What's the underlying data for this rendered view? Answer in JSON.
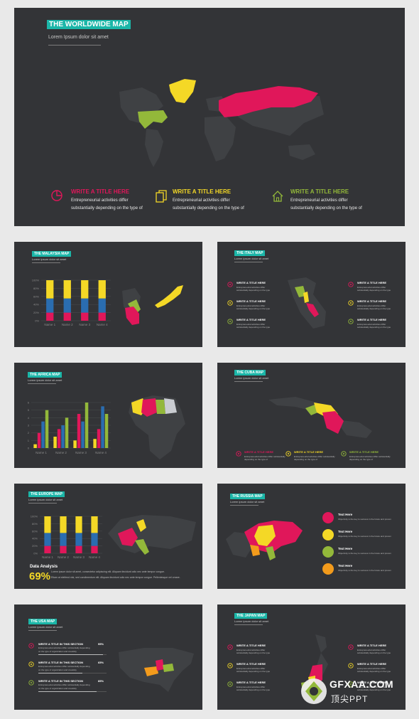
{
  "colors": {
    "teal": "#1bb6a8",
    "red": "#e0175a",
    "yellow": "#f4d826",
    "green": "#93b83a",
    "blue": "#2a6db0",
    "orange": "#f39b1c",
    "slide": "#333437"
  },
  "hero": {
    "title": "THE WORLDWIDE MAP",
    "subtitle": "Lorem Ipsum dolor sit amet",
    "features": [
      {
        "icon": "pie-chart-icon",
        "heading": "WRITE A TITLE  HERE",
        "line1": "Entrepreneurial  activities differ",
        "line2": "substantially depending  on the type of"
      },
      {
        "icon": "documents-icon",
        "heading": "WRITE A TITLE  HERE",
        "line1": "Entrepreneurial  activities differ",
        "line2": "substantially depending  on the type of"
      },
      {
        "icon": "house-icon",
        "heading": "WRITE A TITLE  HERE",
        "line1": "Entrepreneurial  activities differ",
        "line2": "substantially depending  on the type of"
      }
    ]
  },
  "malaysia": {
    "title": "THE MALAYSIA MAP",
    "subtitle": "Lorem ipsum dolor sit amet",
    "chart_data": {
      "type": "bar",
      "categories": [
        "Name 1",
        "Name 2",
        "Name 3",
        "Name 4"
      ],
      "yticks": [
        "100%",
        "80%",
        "60%",
        "40%",
        "20%",
        "0%"
      ],
      "series": [
        {
          "values": [
            20,
            20,
            20,
            20
          ]
        },
        {
          "values": [
            35,
            35,
            35,
            35
          ]
        },
        {
          "values": [
            45,
            45,
            45,
            45
          ]
        }
      ]
    }
  },
  "italy": {
    "title": "THE ITALY MAP",
    "subtitle": "Lorem ipsum dolor sit amet",
    "items": [
      {
        "heading": "WRITE A TITLE HERE",
        "text": "Entrepreneurial activities differ substantially depending on the type"
      },
      {
        "heading": "WRITE A TITLE HERE",
        "text": "Entrepreneurial activities differ substantially depending on the type"
      },
      {
        "heading": "WRITE A TITLE HERE",
        "text": "Entrepreneurial activities differ substantially depending on the type"
      },
      {
        "heading": "WRITE A TITLE HERE",
        "text": "Entrepreneurial activities differ substantially depending on the type"
      },
      {
        "heading": "WRITE A TITLE HERE",
        "text": "Entrepreneurial activities differ substantially depending on the type"
      },
      {
        "heading": "WRITE A TITLE HERE",
        "text": "Entrepreneurial activities differ substantially depending on the type"
      }
    ]
  },
  "africa": {
    "title": "THE AFRICA MAP",
    "subtitle": "Lorem ipsum dolor sit amet",
    "chart_data": {
      "type": "bar",
      "categories": [
        "Name 1",
        "Name 2",
        "Name 3",
        "Name 4"
      ],
      "yticks": [
        "6",
        "5",
        "4",
        "3",
        "2",
        "1",
        "0"
      ],
      "series": [
        {
          "values": [
            0.5,
            1.5,
            1.0,
            1.2
          ]
        },
        {
          "values": [
            2.0,
            2.5,
            4.5,
            2.5
          ]
        },
        {
          "values": [
            3.5,
            3.0,
            3.5,
            5.5
          ]
        },
        {
          "values": [
            5.0,
            4.0,
            6.0,
            4.5
          ]
        }
      ]
    }
  },
  "cuba": {
    "title": "THE CUBA MAP",
    "subtitle": "Lorem ipsum dolor sit amet",
    "items": [
      {
        "heading": "WRITE A TITLE HERE",
        "text": "Entrepreneurial activities differ substantially depending on the type of"
      },
      {
        "heading": "WRITE A TITLE HERE",
        "text": "Entrepreneurial activities differ substantially depending on the type of"
      },
      {
        "heading": "WRITE A TITLE HERE",
        "text": "Entrepreneurial activities differ substantially depending on the type of"
      }
    ]
  },
  "europe": {
    "title": "THE EUROPE MAP",
    "subtitle": "Lorem ipsum dolor sit amet",
    "chart_data": {
      "type": "bar",
      "categories": [
        "Name 1",
        "Name 2",
        "Name 3",
        "Name 4"
      ],
      "yticks": [
        "100%",
        "80%",
        "60%",
        "40%",
        "20%",
        "0%"
      ],
      "series": [
        {
          "values": [
            20,
            20,
            20,
            20
          ]
        },
        {
          "values": [
            35,
            35,
            35,
            35
          ]
        },
        {
          "values": [
            45,
            45,
            45,
            45
          ]
        }
      ]
    },
    "analysis_label": "Data Analysis",
    "analysis_value": "69%",
    "analysis_text1": "Lorem ipsum dolor sit amet, consectetur adipiscing elit. Aliquam tincidunt odio nec ante tempor congue.",
    "analysis_text2": "Etiam at eleifend nisi, sed condimentum elit. Aliquam tincidunt odio nec ante tempor congue. Pellentesque vel ornare."
  },
  "russia": {
    "title": "THE RUSSIA MAP",
    "subtitle": "Lorem ipsum dolor sit amet",
    "items": [
      {
        "heading": "Text Here",
        "text": "Objectivity is the key to success in the future and proven"
      },
      {
        "heading": "Text Here",
        "text": "Objectivity is the key to success in the future and proven"
      },
      {
        "heading": "Text Here",
        "text": "Objectivity is the key to success in the future and proven"
      },
      {
        "heading": "Text Here",
        "text": "Objectivity is the key to success in the future and proven"
      }
    ]
  },
  "usa": {
    "title": "THE USA MAP",
    "subtitle": "Lorem ipsum dolor sit amet",
    "items": [
      {
        "heading": "WRITE A TITLE IN THIS SECTION",
        "text": "Entrepreneurial activities differ substantially depending",
        "text2": "on the type of organization and creativity",
        "pct": "95%",
        "progress": 0.95
      },
      {
        "heading": "WRITE A TITLE IN THIS SECTION",
        "text": "Entrepreneurial activities differ substantially depending",
        "text2": "on the type of organization and creativity",
        "pct": "65%",
        "progress": 0.65
      },
      {
        "heading": "WRITE A TITLE IN THIS SECTION",
        "text": "Entrepreneurial activities differ substantially depending",
        "text2": "on the type of organization and creativity",
        "pct": "85%",
        "progress": 0.85
      }
    ]
  },
  "japan": {
    "title": "THE JAPAN MAP",
    "subtitle": "Lorem ipsum dolor sit amet",
    "items": [
      {
        "heading": "WRITE A TITLE HERE",
        "text": "Entrepreneurial activities differ substantially depending on the type"
      },
      {
        "heading": "WRITE A TITLE HERE",
        "text": "Entrepreneurial activities differ substantially depending on the type"
      },
      {
        "heading": "WRITE A TITLE HERE",
        "text": "Entrepreneurial activities differ substantially depending on the type"
      },
      {
        "heading": "WRITE A TITLE HERE",
        "text": "Entrepreneurial activities differ substantially depending on the type"
      },
      {
        "heading": "WRITE A TITLE HERE",
        "text": "Entrepreneurial activities differ substantially depending on the type"
      },
      {
        "heading": "WRITE A TITLE HERE",
        "text": "Entrepreneurial activities differ substantially depending on the type"
      }
    ]
  },
  "watermark": {
    "brand": "GFXAA.COM",
    "cn": "顶尖PPT"
  }
}
